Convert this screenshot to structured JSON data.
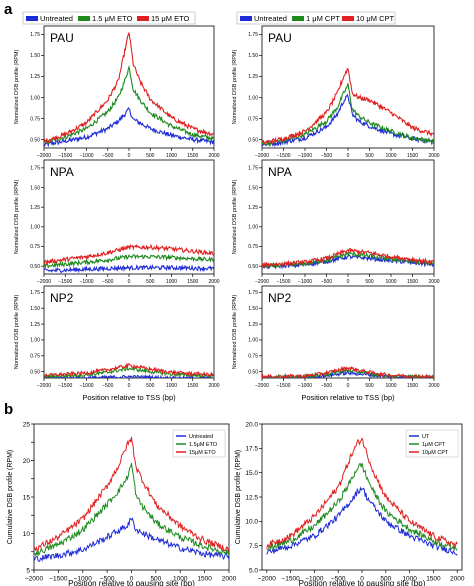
{
  "panel_labels": {
    "a": "a",
    "b": "b"
  },
  "colors": {
    "blue": "#1f2bd6",
    "green": "#1e8a1e",
    "red": "#e02020"
  },
  "legends": {
    "eto_top": [
      "Untreated",
      "1.5 μM ETO",
      "15 μM ETO"
    ],
    "cpt_top": [
      "Untreated",
      "1 μM CPT",
      "10 μM CPT"
    ],
    "eto_bottom": [
      "Untreated",
      "1.5μM ETO",
      "15μM ETO"
    ],
    "cpt_bottom": [
      "UT",
      "1μM CPT",
      "10μM CPT"
    ]
  },
  "chart_data": [
    {
      "type": "line",
      "panel": "a",
      "inset_label": "PAU",
      "ylabel": "Normalized DSB profile (RPM)",
      "xlabel": "",
      "xlim": [
        -2000,
        2000
      ],
      "ylim": [
        0.4,
        1.85
      ],
      "xticks": [
        -2000,
        -1500,
        -1000,
        -500,
        0,
        500,
        1000,
        1500,
        2000
      ],
      "yticks": [
        0.5,
        0.75,
        1.0,
        1.25,
        1.5,
        1.75
      ],
      "ytick_labels": [
        "0.50",
        "0.75",
        "1.00",
        "1.25",
        "1.50",
        "1.75"
      ],
      "x": [
        -2000,
        -1500,
        -1000,
        -500,
        -250,
        -100,
        0,
        100,
        250,
        500,
        1000,
        1500,
        2000
      ],
      "series": [
        {
          "name": "Untreated",
          "values": [
            0.44,
            0.48,
            0.53,
            0.63,
            0.72,
            0.8,
            0.86,
            0.74,
            0.7,
            0.63,
            0.55,
            0.5,
            0.47
          ]
        },
        {
          "name": "1.5 μM ETO",
          "values": [
            0.46,
            0.53,
            0.63,
            0.83,
            1.0,
            1.2,
            1.36,
            1.1,
            0.98,
            0.82,
            0.66,
            0.56,
            0.51
          ]
        },
        {
          "name": "15 μM ETO",
          "values": [
            0.48,
            0.56,
            0.7,
            0.97,
            1.2,
            1.55,
            1.78,
            1.4,
            1.2,
            0.98,
            0.76,
            0.63,
            0.56
          ]
        }
      ]
    },
    {
      "type": "line",
      "panel": "a",
      "inset_label": "PAU",
      "ylabel": "Normalized DSB profile (RPM)",
      "xlabel": "",
      "xlim": [
        -2000,
        2000
      ],
      "ylim": [
        0.4,
        1.85
      ],
      "xticks": [
        -2000,
        -1500,
        -1000,
        -500,
        0,
        500,
        1000,
        1500,
        2000
      ],
      "yticks": [
        0.5,
        0.75,
        1.0,
        1.25,
        1.5,
        1.75
      ],
      "ytick_labels": [
        "0.50",
        "0.75",
        "1.00",
        "1.25",
        "1.50",
        "1.75"
      ],
      "x": [
        -2000,
        -1500,
        -1000,
        -500,
        -250,
        -100,
        0,
        100,
        250,
        500,
        1000,
        1500,
        2000
      ],
      "series": [
        {
          "name": "Untreated",
          "values": [
            0.44,
            0.47,
            0.52,
            0.65,
            0.8,
            0.96,
            1.02,
            0.8,
            0.72,
            0.66,
            0.57,
            0.51,
            0.47
          ]
        },
        {
          "name": "1 μM CPT",
          "values": [
            0.45,
            0.49,
            0.56,
            0.72,
            0.88,
            1.05,
            1.15,
            0.86,
            0.78,
            0.7,
            0.6,
            0.52,
            0.48
          ]
        },
        {
          "name": "10 μM CPT",
          "values": [
            0.46,
            0.51,
            0.6,
            0.82,
            1.05,
            1.25,
            1.35,
            1.05,
            1.0,
            0.97,
            0.82,
            0.64,
            0.56
          ]
        }
      ]
    },
    {
      "type": "line",
      "panel": "a",
      "inset_label": "NPA",
      "ylabel": "Normalized DSB profile (RPM)",
      "xlabel": "",
      "xlim": [
        -2000,
        2000
      ],
      "ylim": [
        0.4,
        1.85
      ],
      "xticks": [
        -2000,
        -1500,
        -1000,
        -500,
        0,
        500,
        1000,
        1500,
        2000
      ],
      "yticks": [
        0.5,
        0.75,
        1.0,
        1.25,
        1.5,
        1.75
      ],
      "ytick_labels": [
        "0.50",
        "0.75",
        "1.00",
        "1.25",
        "1.50",
        "1.75"
      ],
      "x": [
        -2000,
        -1000,
        -500,
        0,
        500,
        1000,
        2000
      ],
      "series": [
        {
          "name": "Untreated",
          "values": [
            0.44,
            0.46,
            0.47,
            0.48,
            0.48,
            0.48,
            0.47
          ]
        },
        {
          "name": "1.5 μM ETO",
          "values": [
            0.5,
            0.55,
            0.58,
            0.62,
            0.62,
            0.61,
            0.58
          ]
        },
        {
          "name": "15 μM ETO",
          "values": [
            0.55,
            0.62,
            0.67,
            0.74,
            0.74,
            0.72,
            0.66
          ]
        }
      ]
    },
    {
      "type": "line",
      "panel": "a",
      "inset_label": "NPA",
      "ylabel": "Normalized DSB profile (RPM)",
      "xlabel": "",
      "xlim": [
        -2000,
        2000
      ],
      "ylim": [
        0.4,
        1.85
      ],
      "xticks": [
        -2000,
        -1500,
        -1000,
        -500,
        0,
        500,
        1000,
        1500,
        2000
      ],
      "yticks": [
        0.5,
        0.75,
        1.0,
        1.25,
        1.5,
        1.75
      ],
      "ytick_labels": [
        "0.50",
        "0.75",
        "1.00",
        "1.25",
        "1.50",
        "1.75"
      ],
      "x": [
        -2000,
        -1000,
        -500,
        0,
        500,
        1000,
        2000
      ],
      "series": [
        {
          "name": "Untreated",
          "values": [
            0.49,
            0.52,
            0.56,
            0.62,
            0.6,
            0.57,
            0.52
          ]
        },
        {
          "name": "1 μM CPT",
          "values": [
            0.5,
            0.53,
            0.58,
            0.66,
            0.63,
            0.59,
            0.53
          ]
        },
        {
          "name": "10 μM CPT",
          "values": [
            0.51,
            0.55,
            0.6,
            0.7,
            0.67,
            0.62,
            0.55
          ]
        }
      ]
    },
    {
      "type": "line",
      "panel": "a",
      "inset_label": "NP2",
      "ylabel": "Normalized DSB profile (RPM)",
      "xlabel": "Position relative to TSS (bp)",
      "xlim": [
        -2000,
        2000
      ],
      "ylim": [
        0.4,
        1.85
      ],
      "xticks": [
        -2000,
        -1500,
        -1000,
        -500,
        0,
        500,
        1000,
        1500,
        2000
      ],
      "yticks": [
        0.5,
        0.75,
        1.0,
        1.25,
        1.5,
        1.75
      ],
      "ytick_labels": [
        "0.50",
        "0.75",
        "1.00",
        "1.25",
        "1.50",
        "1.75"
      ],
      "x": [
        -2000,
        -1000,
        -500,
        0,
        500,
        1000,
        2000
      ],
      "series": [
        {
          "name": "Untreated",
          "values": [
            0.4,
            0.4,
            0.41,
            0.42,
            0.41,
            0.4,
            0.4
          ]
        },
        {
          "name": "1.5 μM ETO",
          "values": [
            0.42,
            0.45,
            0.49,
            0.55,
            0.5,
            0.46,
            0.43
          ]
        },
        {
          "name": "15 μM ETO",
          "values": [
            0.44,
            0.48,
            0.53,
            0.6,
            0.54,
            0.49,
            0.45
          ]
        }
      ]
    },
    {
      "type": "line",
      "panel": "a",
      "inset_label": "NP2",
      "ylabel": "Normalized DSB profile (RPM)",
      "xlabel": "Position relative to TSS (bp)",
      "xlim": [
        -2000,
        2000
      ],
      "ylim": [
        0.4,
        1.85
      ],
      "xticks": [
        -2000,
        -1500,
        -1000,
        -500,
        0,
        500,
        1000,
        1500,
        2000
      ],
      "yticks": [
        0.5,
        0.75,
        1.0,
        1.25,
        1.5,
        1.75
      ],
      "ytick_labels": [
        "0.50",
        "0.75",
        "1.00",
        "1.25",
        "1.50",
        "1.75"
      ],
      "x": [
        -2000,
        -1000,
        -500,
        0,
        500,
        1000,
        2000
      ],
      "series": [
        {
          "name": "Untreated",
          "values": [
            0.4,
            0.41,
            0.44,
            0.48,
            0.45,
            0.42,
            0.4
          ]
        },
        {
          "name": "1 μM CPT",
          "values": [
            0.41,
            0.42,
            0.46,
            0.52,
            0.47,
            0.43,
            0.41
          ]
        },
        {
          "name": "10 μM CPT",
          "values": [
            0.42,
            0.43,
            0.48,
            0.56,
            0.49,
            0.44,
            0.42
          ]
        }
      ]
    },
    {
      "type": "line",
      "panel": "b",
      "inset_label": "",
      "ylabel": "Cumulative DSB profile (RPM)",
      "xlabel": "Position relative to pausing site (bp)",
      "xlim": [
        -2000,
        2000
      ],
      "ylim": [
        5,
        25
      ],
      "xticks": [
        -2000,
        -1500,
        -1000,
        -500,
        0,
        500,
        1000,
        1500,
        2000
      ],
      "yticks": [
        5,
        7.5,
        10,
        12.5,
        15,
        17.5,
        20,
        22.5,
        25
      ],
      "ytick_labels": [
        "5",
        "",
        "10",
        "",
        "15",
        "",
        "20",
        "",
        "25"
      ],
      "x": [
        -2000,
        -1500,
        -1000,
        -500,
        -250,
        -100,
        0,
        100,
        250,
        500,
        1000,
        1500,
        2000
      ],
      "series": [
        {
          "name": "Untreated",
          "values": [
            6.5,
            7.0,
            7.8,
            9.5,
            10.5,
            11.0,
            12.0,
            10.5,
            10.0,
            9.2,
            8.0,
            7.2,
            6.8
          ]
        },
        {
          "name": "1.5μM ETO",
          "values": [
            7.2,
            8.5,
            10.5,
            14.0,
            16.0,
            17.5,
            19.5,
            15.0,
            13.5,
            11.5,
            9.5,
            8.2,
            7.3
          ]
        },
        {
          "name": "15μM ETO",
          "values": [
            7.8,
            9.5,
            12.0,
            16.5,
            19.5,
            22.0,
            23.0,
            19.0,
            17.0,
            14.0,
            11.0,
            9.0,
            7.8
          ]
        }
      ]
    },
    {
      "type": "line",
      "panel": "b",
      "inset_label": "",
      "ylabel": "Cumulative DSB profile (RPM)",
      "xlabel": "Position relative to pausing site (bp)",
      "xlim": [
        -2100,
        2100
      ],
      "ylim": [
        5,
        20
      ],
      "xticks": [
        -2000,
        -1500,
        -1000,
        -500,
        0,
        500,
        1000,
        1500,
        2000
      ],
      "yticks": [
        5.0,
        7.5,
        10.0,
        12.5,
        15.0,
        17.5,
        20.0
      ],
      "ytick_labels": [
        "5.0",
        "7.5",
        "10.0",
        "12.5",
        "15.0",
        "17.5",
        "20.0"
      ],
      "x": [
        -2000,
        -1500,
        -1000,
        -500,
        -250,
        -100,
        0,
        100,
        250,
        500,
        1000,
        1500,
        2000
      ],
      "series": [
        {
          "name": "UT",
          "values": [
            6.8,
            7.5,
            8.5,
            10.5,
            12.0,
            13.0,
            13.5,
            12.5,
            11.5,
            10.0,
            8.5,
            7.5,
            6.8
          ]
        },
        {
          "name": "1μM CPT",
          "values": [
            7.2,
            8.0,
            9.5,
            12.0,
            14.0,
            15.5,
            15.8,
            14.5,
            13.0,
            11.0,
            9.2,
            8.0,
            7.2
          ]
        },
        {
          "name": "10μM CPT",
          "values": [
            7.5,
            8.5,
            10.5,
            13.5,
            16.5,
            18.0,
            18.5,
            17.0,
            15.0,
            12.5,
            10.0,
            8.5,
            7.5
          ]
        }
      ]
    }
  ]
}
